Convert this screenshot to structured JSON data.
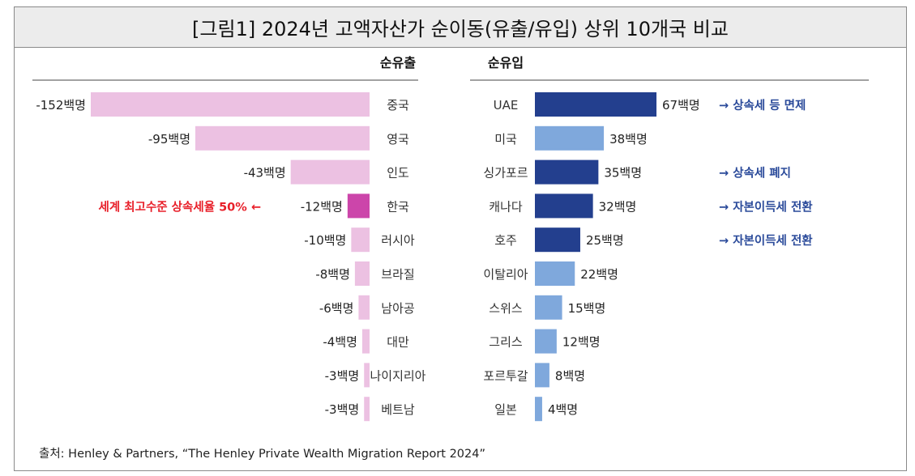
{
  "title": "[그림1] 2024년 고액자산가 순이동(유출/유입) 상위 10개국 비교",
  "source": "출처: Henley & Partners, “The Henley Private Wealth Migration Report 2024”",
  "colors": {
    "outflow_light": "#ecc1e2",
    "outflow_highlight": "#cc45aa",
    "inflow_dark": "#233f8e",
    "inflow_light": "#7fa8dc",
    "annotation_blue": "#2a4a9a",
    "annotation_red": "#e8202a"
  },
  "chart_data": [
    {
      "type": "bar",
      "title": "순유출",
      "categories": [
        "중국",
        "영국",
        "인도",
        "한국",
        "러시아",
        "브라질",
        "남아공",
        "대만",
        "나이지리아",
        "베트남"
      ],
      "values": [
        -152,
        -95,
        -43,
        -12,
        -10,
        -8,
        -6,
        -4,
        -3,
        -3
      ],
      "value_labels": [
        "-152백명",
        "-95백명",
        "-43백명",
        "-12백명",
        "-10백명",
        "-8백명",
        "-6백명",
        "-4백명",
        "-3백명",
        "-3백명"
      ],
      "highlight": [
        "한국"
      ],
      "annotations": [
        {
          "category": "한국",
          "text": "세계 최고수준 상속세율 50% ←",
          "color": "red"
        }
      ]
    },
    {
      "type": "bar",
      "title": "순유입",
      "categories": [
        "UAE",
        "미국",
        "싱가포르",
        "캐나다",
        "호주",
        "이탈리아",
        "스위스",
        "그리스",
        "포르투갈",
        "일본"
      ],
      "values": [
        67,
        38,
        35,
        32,
        25,
        22,
        15,
        12,
        8,
        4
      ],
      "value_labels": [
        "67백명",
        "38백명",
        "35백명",
        "32백명",
        "25백명",
        "22백명",
        "15백명",
        "12백명",
        "8백명",
        "4백명"
      ],
      "dark_bars": [
        "UAE",
        "싱가포르",
        "캐나다",
        "호주"
      ],
      "annotations": [
        {
          "category": "UAE",
          "text": "→ 상속세 등 면제"
        },
        {
          "category": "싱가포르",
          "text": "→ 상속세 폐지"
        },
        {
          "category": "캐나다",
          "text": "→ 자본이득세 전환"
        },
        {
          "category": "호주",
          "text": "→ 자본이득세 전환"
        }
      ]
    }
  ]
}
